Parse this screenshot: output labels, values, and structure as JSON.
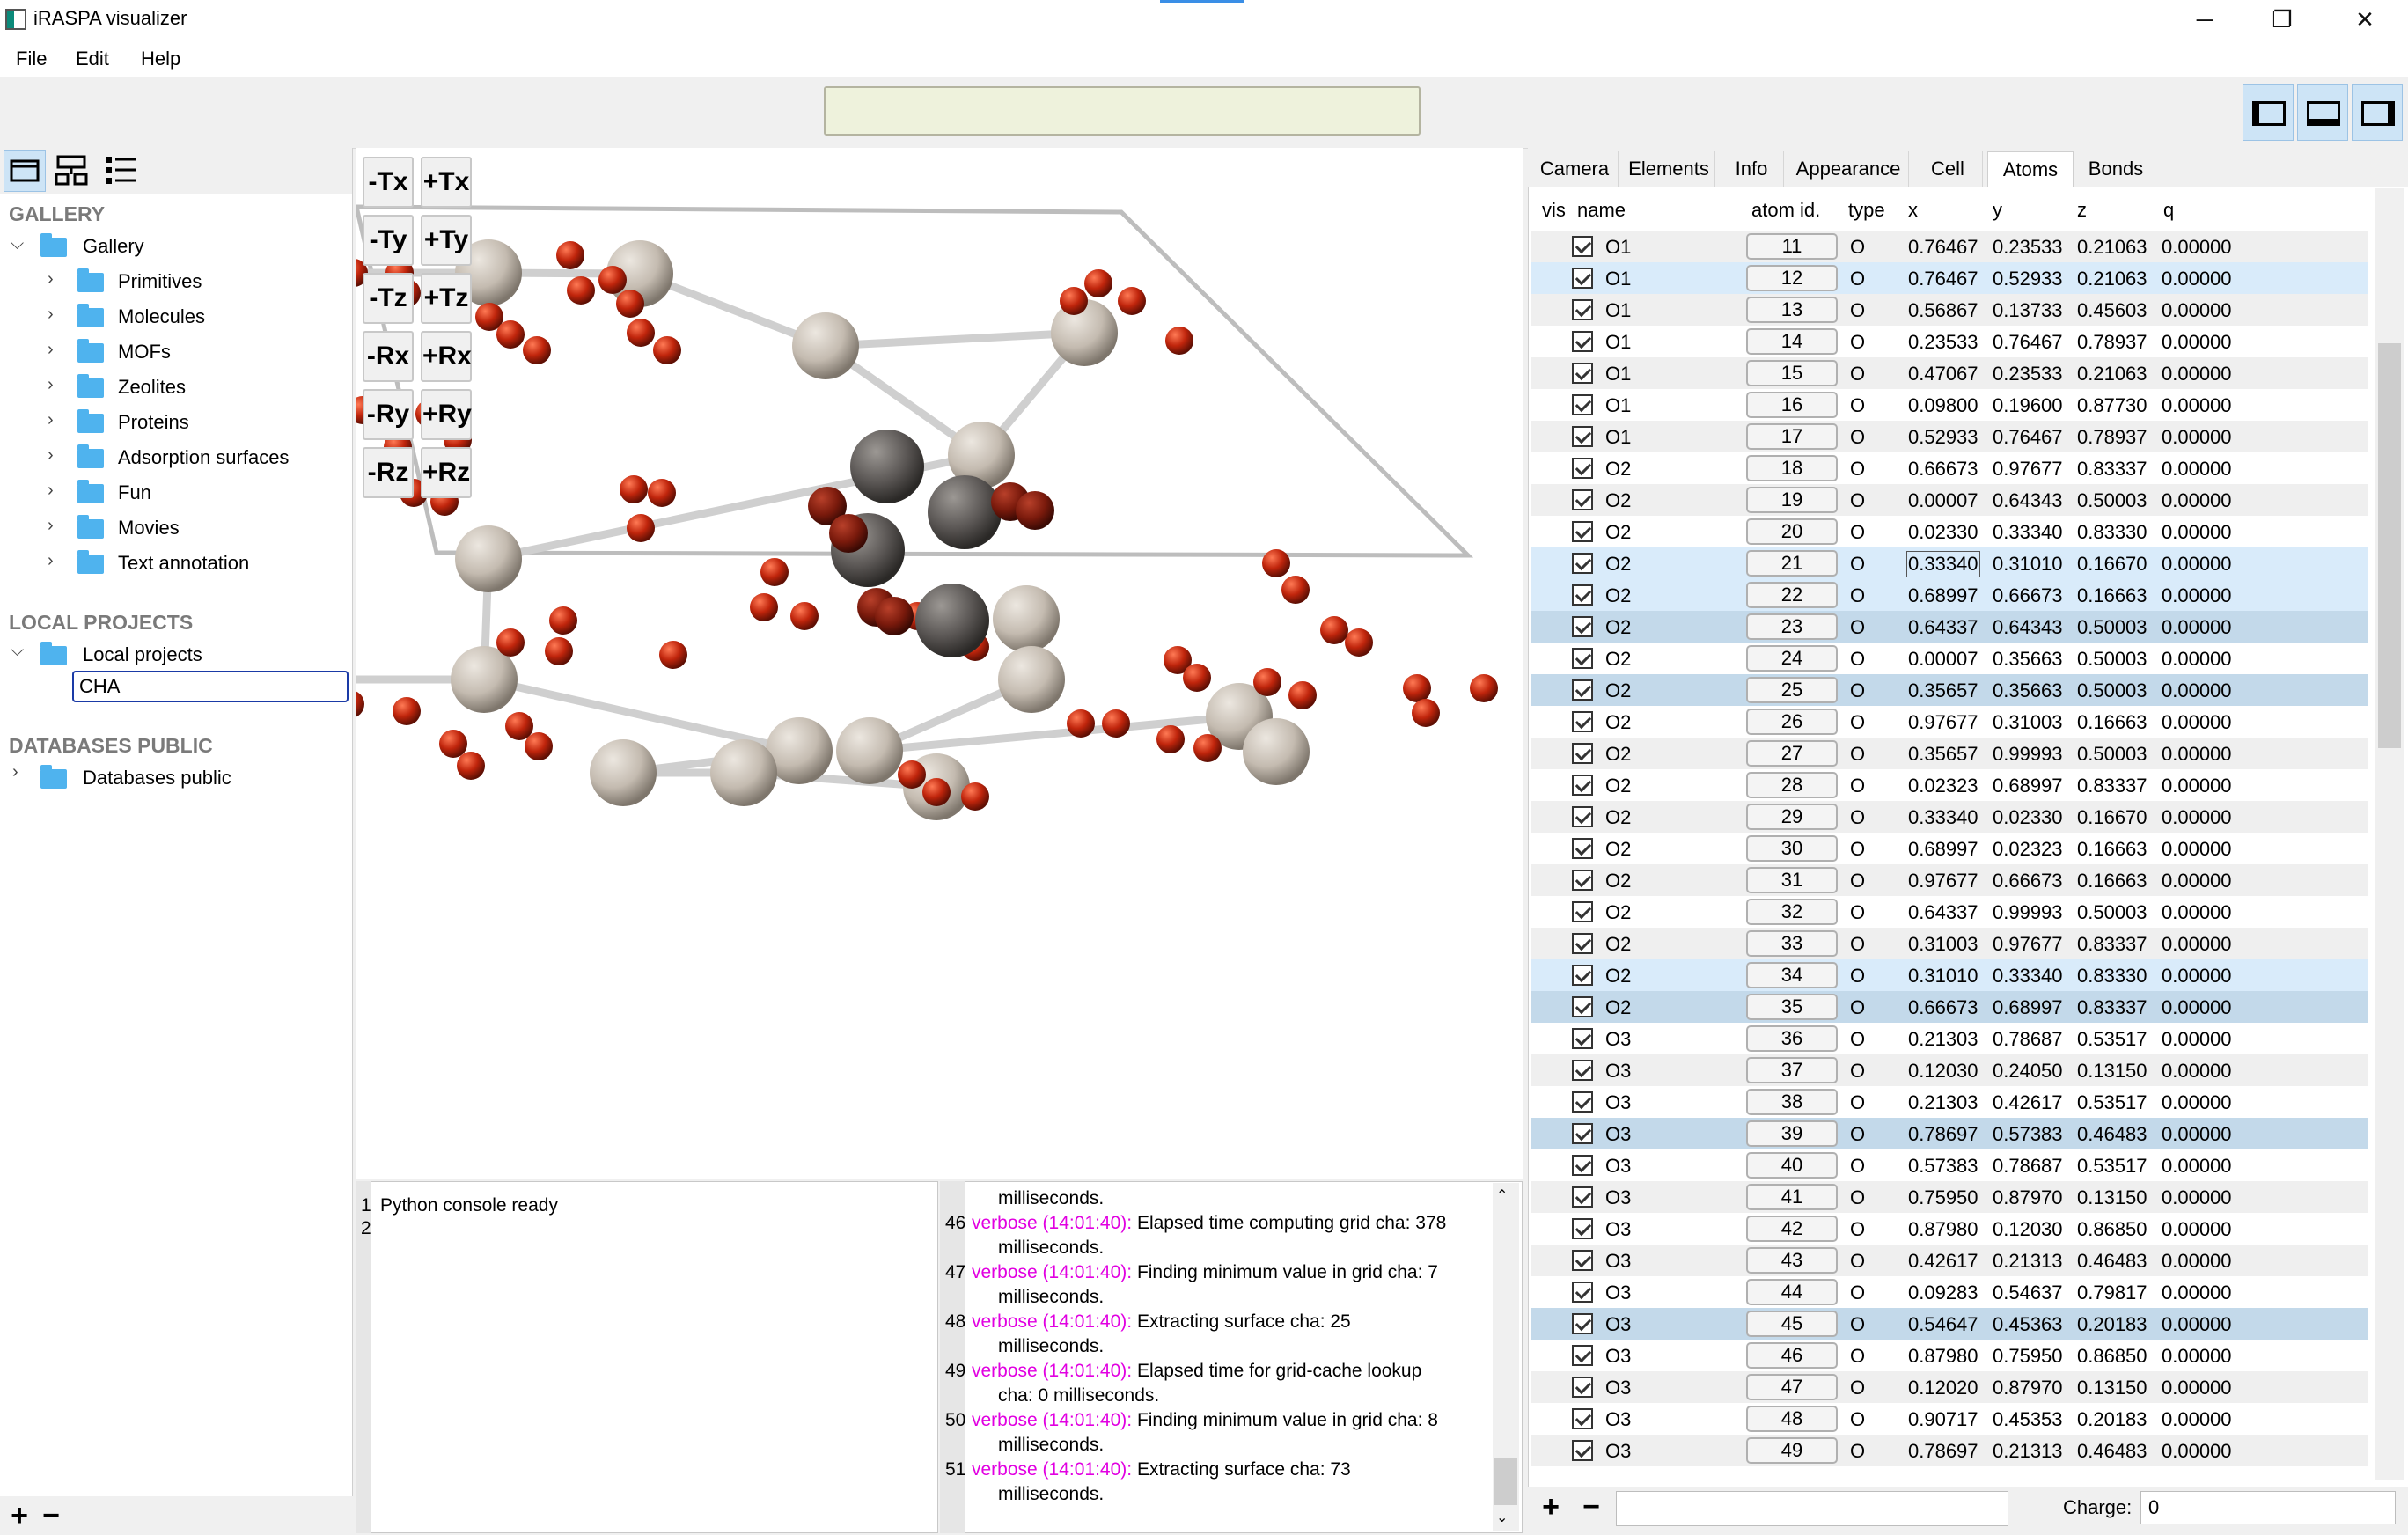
{
  "window": {
    "title": "iRASPA visualizer",
    "controls": {
      "minimize": "─",
      "maximize": "❐",
      "close": "✕"
    }
  },
  "menu": {
    "file": "File",
    "edit": "Edit",
    "help": "Help"
  },
  "left_panel": {
    "sections": {
      "gallery": "GALLERY",
      "local_projects": "LOCAL PROJECTS",
      "databases_public": "DATABASES PUBLIC"
    },
    "gallery_root": "Gallery",
    "gallery_items": [
      "Primitives",
      "Molecules",
      "MOFs",
      "Zeolites",
      "Proteins",
      "Adsorption surfaces",
      "Fun",
      "Movies",
      "Text annotation"
    ],
    "local_root": "Local projects",
    "local_items": [
      "CHA"
    ],
    "databases_root": "Databases public",
    "bottom": {
      "add": "+",
      "remove": "−"
    }
  },
  "transform_buttons": [
    "-Tx",
    "+Tx",
    "-Ty",
    "+Ty",
    "-Tz",
    "+Tz",
    "-Rx",
    "+Rx",
    "-Ry",
    "+Ry",
    "-Rz",
    "+Rz"
  ],
  "python_console": {
    "lines": [
      "1",
      "2"
    ],
    "text": "Python console ready"
  },
  "log": {
    "lines": [
      {
        "num": "",
        "level": "",
        "text": "milliseconds."
      },
      {
        "num": "46",
        "level": "verbose (14:01:40):",
        "text": " Elapsed time computing grid cha: 378"
      },
      {
        "num": "",
        "level": "",
        "text": "milliseconds."
      },
      {
        "num": "47",
        "level": "verbose (14:01:40):",
        "text": " Finding minimum value in grid cha: 7"
      },
      {
        "num": "",
        "level": "",
        "text": "milliseconds."
      },
      {
        "num": "48",
        "level": "verbose (14:01:40):",
        "text": " Extracting surface cha: 25"
      },
      {
        "num": "",
        "level": "",
        "text": "milliseconds."
      },
      {
        "num": "49",
        "level": "verbose (14:01:40):",
        "text": " Elapsed time for grid-cache lookup"
      },
      {
        "num": "",
        "level": "",
        "text": "cha: 0 milliseconds."
      },
      {
        "num": "50",
        "level": "verbose (14:01:40):",
        "text": " Finding minimum value in grid cha: 8"
      },
      {
        "num": "",
        "level": "",
        "text": "milliseconds."
      },
      {
        "num": "51",
        "level": "verbose (14:01:40):",
        "text": " Extracting surface cha: 73"
      },
      {
        "num": "",
        "level": "",
        "text": "milliseconds."
      }
    ]
  },
  "tabs": [
    "Camera",
    "Elements",
    "Info",
    "Appearance",
    "Cell",
    "Atoms",
    "Bonds"
  ],
  "active_tab": "Atoms",
  "atoms_table": {
    "columns": [
      "vis",
      "name",
      "atom id.",
      "type",
      "x",
      "y",
      "z",
      "q"
    ],
    "rows": [
      [
        "O1",
        "11",
        "O",
        "0.76467",
        "0.23533",
        "0.21063",
        "0.00000",
        ""
      ],
      [
        "O1",
        "12",
        "O",
        "0.76467",
        "0.52933",
        "0.21063",
        "0.00000",
        "light"
      ],
      [
        "O1",
        "13",
        "O",
        "0.56867",
        "0.13733",
        "0.45603",
        "0.00000",
        ""
      ],
      [
        "O1",
        "14",
        "O",
        "0.23533",
        "0.76467",
        "0.78937",
        "0.00000",
        ""
      ],
      [
        "O1",
        "15",
        "O",
        "0.47067",
        "0.23533",
        "0.21063",
        "0.00000",
        ""
      ],
      [
        "O1",
        "16",
        "O",
        "0.09800",
        "0.19600",
        "0.87730",
        "0.00000",
        ""
      ],
      [
        "O1",
        "17",
        "O",
        "0.52933",
        "0.76467",
        "0.78937",
        "0.00000",
        ""
      ],
      [
        "O2",
        "18",
        "O",
        "0.66673",
        "0.97677",
        "0.83337",
        "0.00000",
        ""
      ],
      [
        "O2",
        "19",
        "O",
        "0.00007",
        "0.64343",
        "0.50003",
        "0.00000",
        ""
      ],
      [
        "O2",
        "20",
        "O",
        "0.02330",
        "0.33340",
        "0.83330",
        "0.00000",
        ""
      ],
      [
        "O2",
        "21",
        "O",
        "0.33340",
        "0.31010",
        "0.16670",
        "0.00000",
        "light"
      ],
      [
        "O2",
        "22",
        "O",
        "0.68997",
        "0.66673",
        "0.16663",
        "0.00000",
        "light"
      ],
      [
        "O2",
        "23",
        "O",
        "0.64337",
        "0.64343",
        "0.50003",
        "0.00000",
        "dark"
      ],
      [
        "O2",
        "24",
        "O",
        "0.00007",
        "0.35663",
        "0.50003",
        "0.00000",
        ""
      ],
      [
        "O2",
        "25",
        "O",
        "0.35657",
        "0.35663",
        "0.50003",
        "0.00000",
        "dark"
      ],
      [
        "O2",
        "26",
        "O",
        "0.97677",
        "0.31003",
        "0.16663",
        "0.00000",
        ""
      ],
      [
        "O2",
        "27",
        "O",
        "0.35657",
        "0.99993",
        "0.50003",
        "0.00000",
        ""
      ],
      [
        "O2",
        "28",
        "O",
        "0.02323",
        "0.68997",
        "0.83337",
        "0.00000",
        ""
      ],
      [
        "O2",
        "29",
        "O",
        "0.33340",
        "0.02330",
        "0.16670",
        "0.00000",
        ""
      ],
      [
        "O2",
        "30",
        "O",
        "0.68997",
        "0.02323",
        "0.16663",
        "0.00000",
        ""
      ],
      [
        "O2",
        "31",
        "O",
        "0.97677",
        "0.66673",
        "0.16663",
        "0.00000",
        ""
      ],
      [
        "O2",
        "32",
        "O",
        "0.64337",
        "0.99993",
        "0.50003",
        "0.00000",
        ""
      ],
      [
        "O2",
        "33",
        "O",
        "0.31003",
        "0.97677",
        "0.83337",
        "0.00000",
        ""
      ],
      [
        "O2",
        "34",
        "O",
        "0.31010",
        "0.33340",
        "0.83330",
        "0.00000",
        "light"
      ],
      [
        "O2",
        "35",
        "O",
        "0.66673",
        "0.68997",
        "0.83337",
        "0.00000",
        "dark"
      ],
      [
        "O3",
        "36",
        "O",
        "0.21303",
        "0.78687",
        "0.53517",
        "0.00000",
        ""
      ],
      [
        "O3",
        "37",
        "O",
        "0.12030",
        "0.24050",
        "0.13150",
        "0.00000",
        ""
      ],
      [
        "O3",
        "38",
        "O",
        "0.21303",
        "0.42617",
        "0.53517",
        "0.00000",
        ""
      ],
      [
        "O3",
        "39",
        "O",
        "0.78697",
        "0.57383",
        "0.46483",
        "0.00000",
        "dark"
      ],
      [
        "O3",
        "40",
        "O",
        "0.57383",
        "0.78687",
        "0.53517",
        "0.00000",
        ""
      ],
      [
        "O3",
        "41",
        "O",
        "0.75950",
        "0.87970",
        "0.13150",
        "0.00000",
        ""
      ],
      [
        "O3",
        "42",
        "O",
        "0.87980",
        "0.12030",
        "0.86850",
        "0.00000",
        ""
      ],
      [
        "O3",
        "43",
        "O",
        "0.42617",
        "0.21313",
        "0.46483",
        "0.00000",
        ""
      ],
      [
        "O3",
        "44",
        "O",
        "0.09283",
        "0.54637",
        "0.79817",
        "0.00000",
        ""
      ],
      [
        "O3",
        "45",
        "O",
        "0.54647",
        "0.45363",
        "0.20183",
        "0.00000",
        "dark"
      ],
      [
        "O3",
        "46",
        "O",
        "0.87980",
        "0.75950",
        "0.86850",
        "0.00000",
        ""
      ],
      [
        "O3",
        "47",
        "O",
        "0.12020",
        "0.87970",
        "0.13150",
        "0.00000",
        ""
      ],
      [
        "O3",
        "48",
        "O",
        "0.90717",
        "0.45353",
        "0.20183",
        "0.00000",
        ""
      ],
      [
        "O3",
        "49",
        "O",
        "0.78697",
        "0.21313",
        "0.46483",
        "0.00000",
        ""
      ]
    ]
  },
  "atom_bottom": {
    "add": "+",
    "remove": "−",
    "charge_label": "Charge:",
    "charge_value": "0"
  },
  "colors": {
    "row_light": "#d9ebfa",
    "row_dark": "#c3d9ea",
    "row_alt": "#efefef",
    "verbose": "#e100e1",
    "oxygen": "#c0250c",
    "silicon": "#c4bbb0",
    "carbon": "#5a5654"
  }
}
